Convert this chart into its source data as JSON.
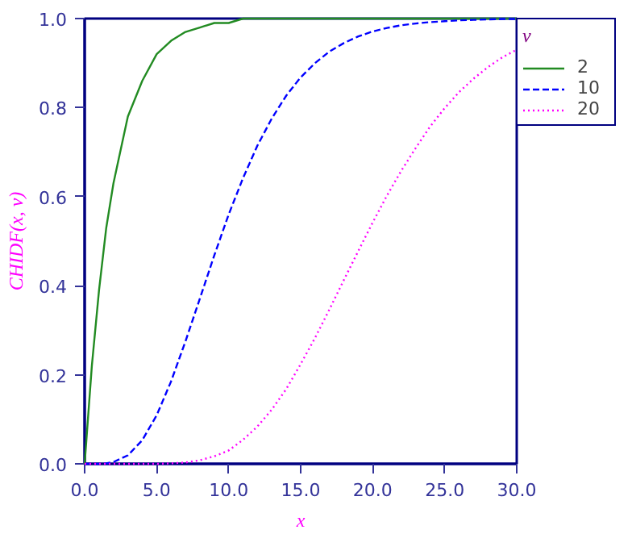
{
  "chart_data": {
    "type": "line",
    "xlabel": "x",
    "ylabel": "CHIDF(x, ν)",
    "legend_title": "ν",
    "legend": "top right",
    "grid": false,
    "marker": "none",
    "x": [
      0,
      0.5,
      1,
      1.5,
      2,
      3,
      4,
      5,
      6,
      7,
      8,
      9,
      10,
      11,
      12,
      13,
      14,
      15,
      16,
      17,
      18,
      19,
      20,
      21,
      22,
      23,
      24,
      25,
      26,
      27,
      28,
      29,
      30
    ],
    "series": [
      {
        "name": "2",
        "color": "#228b22",
        "line_style": "solid",
        "values": [
          0,
          0.22,
          0.39,
          0.53,
          0.63,
          0.78,
          0.86,
          0.92,
          0.95,
          0.97,
          0.98,
          0.99,
          0.99,
          1.0,
          1.0,
          1.0,
          1.0,
          1.0,
          1.0,
          1.0,
          1.0,
          1.0,
          1.0,
          1.0,
          1.0,
          1.0,
          1.0,
          1.0,
          1.0,
          1.0,
          1.0,
          1.0,
          1.0
        ]
      },
      {
        "name": "10",
        "color": "#0000ff",
        "line_style": "dashed",
        "values": [
          0,
          0,
          0,
          0.001,
          0.004,
          0.019,
          0.053,
          0.109,
          0.185,
          0.275,
          0.371,
          0.468,
          0.56,
          0.642,
          0.715,
          0.776,
          0.827,
          0.868,
          0.9,
          0.926,
          0.945,
          0.96,
          0.971,
          0.979,
          0.985,
          0.989,
          0.992,
          0.994,
          0.996,
          0.997,
          0.998,
          0.999,
          0.999
        ]
      },
      {
        "name": "20",
        "color": "#ff00ff",
        "line_style": "dotted",
        "values": [
          0,
          0,
          0,
          0,
          0,
          0,
          0,
          0,
          0.001,
          0.003,
          0.008,
          0.017,
          0.03,
          0.054,
          0.084,
          0.122,
          0.168,
          0.224,
          0.283,
          0.347,
          0.413,
          0.478,
          0.542,
          0.603,
          0.659,
          0.71,
          0.758,
          0.799,
          0.835,
          0.865,
          0.891,
          0.913,
          0.93
        ]
      }
    ],
    "xlim": [
      0,
      30
    ],
    "ylim": [
      0,
      1
    ],
    "xticks": [
      {
        "value": 0,
        "label": "0.0"
      },
      {
        "value": 5,
        "label": "5.0"
      },
      {
        "value": 10,
        "label": "10.0"
      },
      {
        "value": 15,
        "label": "15.0"
      },
      {
        "value": 20,
        "label": "20.0"
      },
      {
        "value": 25,
        "label": "25.0"
      },
      {
        "value": 30,
        "label": "30.0"
      }
    ],
    "yticks": [
      {
        "value": 0,
        "label": "0.0"
      },
      {
        "value": 0.2,
        "label": "0.2"
      },
      {
        "value": 0.4,
        "label": "0.4"
      },
      {
        "value": 0.6,
        "label": "0.6"
      },
      {
        "value": 0.8,
        "label": "0.8"
      },
      {
        "value": 1,
        "label": "1.0"
      }
    ]
  }
}
